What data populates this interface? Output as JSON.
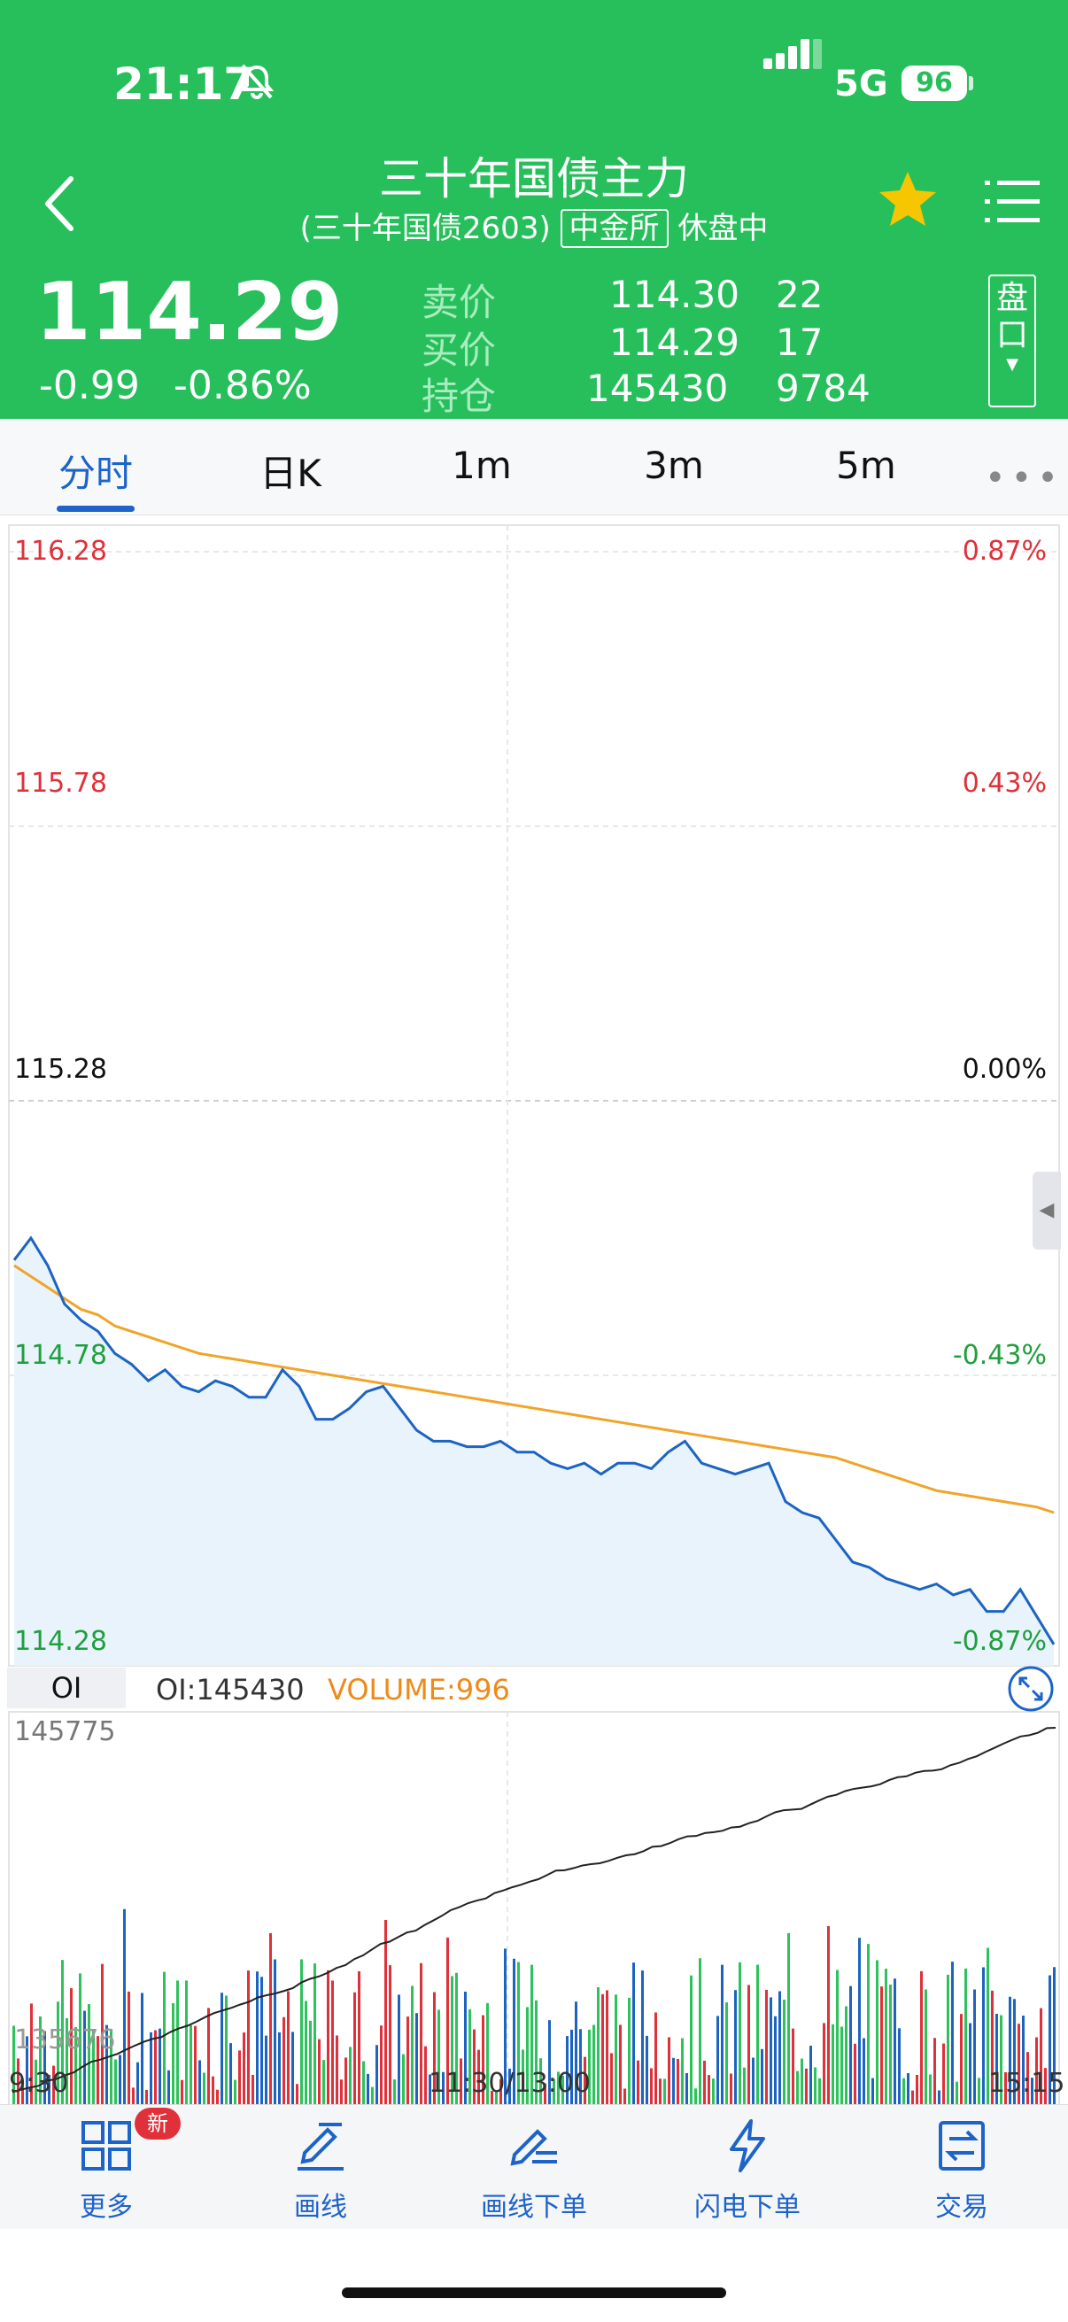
{
  "status": {
    "time": "21:17",
    "network": "5G",
    "battery": "96"
  },
  "header": {
    "title": "三十年国债主力",
    "subtitle_prefix": "(三十年国债2603)",
    "exchange": "中金所",
    "market_state": "休盘中",
    "last_price": "114.29",
    "change": "-0.99",
    "change_pct": "-0.86%",
    "quotes": [
      {
        "label": "卖价",
        "price": "114.30",
        "qty": "22"
      },
      {
        "label": "买价",
        "price": "114.29",
        "qty": "17"
      },
      {
        "label": "持仓",
        "price": "145430",
        "qty": "9784"
      }
    ],
    "pankou_label": "盘口"
  },
  "tabs": [
    {
      "label": "分时",
      "active": true
    },
    {
      "label": "日K"
    },
    {
      "label": "1m"
    },
    {
      "label": "3m"
    },
    {
      "label": "5m"
    }
  ],
  "colors": {
    "brand_green": "#27bf5b",
    "accent_blue": "#1e63c8",
    "up_red": "#e0303a",
    "down_green": "#1f9f3d",
    "avg_line": "#f0a428"
  },
  "chart_data": {
    "type": "line",
    "price_axis": {
      "left_labels": [
        "116.28",
        "115.78",
        "115.28",
        "114.78",
        "114.28"
      ],
      "right_labels": [
        "0.87%",
        "0.43%",
        "0.00%",
        "-0.43%",
        "-0.87%"
      ],
      "ylim": [
        114.28,
        116.28
      ]
    },
    "x_labels": [
      "9:30",
      "11:30/13:00",
      "15:15"
    ],
    "series": [
      {
        "values": [
          114.99,
          115.03,
          114.98,
          114.91,
          114.88,
          114.86,
          114.82,
          114.8,
          114.77,
          114.79,
          114.76,
          114.75,
          114.77,
          114.76,
          114.74,
          114.74,
          114.79,
          114.76,
          114.7,
          114.7,
          114.72,
          114.75,
          114.76,
          114.72,
          114.68,
          114.66,
          114.66,
          114.65,
          114.65,
          114.66,
          114.64,
          114.64,
          114.62,
          114.61,
          114.62,
          114.6,
          114.62,
          114.62,
          114.61,
          114.64,
          114.66,
          114.62,
          114.61,
          114.6,
          114.61,
          114.62,
          114.55,
          114.53,
          114.52,
          114.48,
          114.44,
          114.43,
          114.41,
          114.4,
          114.39,
          114.4,
          114.38,
          114.39,
          114.35,
          114.35,
          114.39,
          114.34,
          114.29
        ]
      },
      {
        "values": [
          114.98,
          114.96,
          114.94,
          114.92,
          114.9,
          114.89,
          114.87,
          114.86,
          114.85,
          114.84,
          114.83,
          114.82,
          114.815,
          114.81,
          114.805,
          114.8,
          114.795,
          114.79,
          114.785,
          114.78,
          114.775,
          114.77,
          114.765,
          114.76,
          114.755,
          114.75,
          114.745,
          114.74,
          114.735,
          114.73,
          114.725,
          114.72,
          114.715,
          114.71,
          114.705,
          114.7,
          114.695,
          114.69,
          114.685,
          114.68,
          114.675,
          114.67,
          114.665,
          114.66,
          114.655,
          114.65,
          114.645,
          114.64,
          114.635,
          114.63,
          114.62,
          114.61,
          114.6,
          114.59,
          114.58,
          114.57,
          114.565,
          114.56,
          114.555,
          114.55,
          114.545,
          114.54,
          114.53
        ]
      }
    ],
    "oi_panel": {
      "tag": "OI",
      "oi_text": "OI:145430",
      "volume_text": "VOLUME:996",
      "oi_max_label": "145775",
      "oi_min_label": "135676"
    }
  },
  "toolbar": [
    {
      "label": "更多",
      "icon": "grid-icon",
      "badge": "新"
    },
    {
      "label": "画线",
      "icon": "pen-line-icon"
    },
    {
      "label": "画线下单",
      "icon": "pen-order-icon"
    },
    {
      "label": "闪电下单",
      "icon": "lightning-icon"
    },
    {
      "label": "交易",
      "icon": "trade-icon"
    }
  ]
}
